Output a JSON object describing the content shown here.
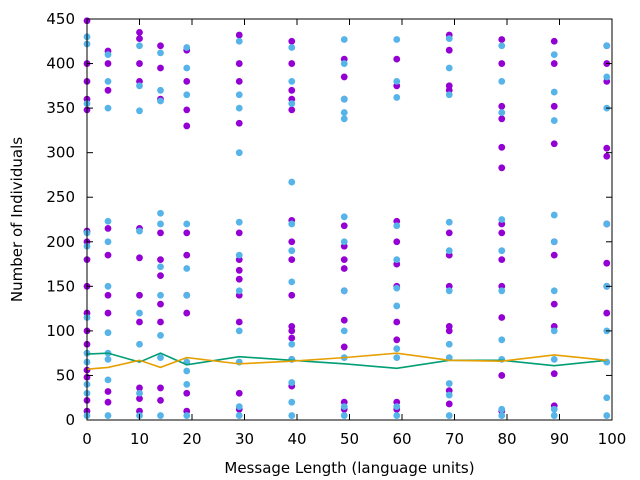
{
  "chart_data": {
    "type": "scatter",
    "xlabel": "Message Length (language units)",
    "ylabel": "Number of Individuals",
    "xlim": [
      0,
      100
    ],
    "ylim": [
      0,
      450
    ],
    "xticks": [
      "0",
      "10",
      "20",
      "30",
      "40",
      "50",
      "60",
      "70",
      "80",
      "90",
      "100"
    ],
    "yticks": [
      "0",
      "50",
      "100",
      "150",
      "200",
      "250",
      "300",
      "350",
      "400",
      "450"
    ],
    "grid": false,
    "colors": {
      "violet": "#9400d3",
      "skyblue": "#56b4e9",
      "teal": "#009e73",
      "orange": "#e69f00"
    },
    "x_positions": [
      0,
      4,
      10,
      14,
      19,
      29,
      39,
      49,
      59,
      69,
      79,
      89,
      99
    ],
    "series": [
      {
        "color_key": "violet",
        "kind": "points",
        "points": [
          [
            0,
            448
          ],
          [
            0,
            400
          ],
          [
            0,
            380
          ],
          [
            0,
            360
          ],
          [
            0,
            348
          ],
          [
            0,
            212
          ],
          [
            0,
            200
          ],
          [
            0,
            180
          ],
          [
            0,
            150
          ],
          [
            0,
            120
          ],
          [
            0,
            100
          ],
          [
            0,
            85
          ],
          [
            0,
            56
          ],
          [
            0,
            48
          ],
          [
            0,
            22
          ],
          [
            0,
            10
          ],
          [
            4,
            414
          ],
          [
            4,
            400
          ],
          [
            4,
            370
          ],
          [
            4,
            215
          ],
          [
            4,
            185
          ],
          [
            4,
            140
          ],
          [
            4,
            120
          ],
          [
            4,
            32
          ],
          [
            4,
            20
          ],
          [
            10,
            435
          ],
          [
            10,
            428
          ],
          [
            10,
            400
          ],
          [
            10,
            380
          ],
          [
            10,
            215
          ],
          [
            10,
            182
          ],
          [
            10,
            140
          ],
          [
            10,
            110
          ],
          [
            10,
            36
          ],
          [
            10,
            24
          ],
          [
            10,
            10
          ],
          [
            14,
            420
          ],
          [
            14,
            395
          ],
          [
            14,
            360
          ],
          [
            14,
            210
          ],
          [
            14,
            180
          ],
          [
            14,
            162
          ],
          [
            14,
            130
          ],
          [
            14,
            110
          ],
          [
            14,
            36
          ],
          [
            14,
            22
          ],
          [
            19,
            415
          ],
          [
            19,
            380
          ],
          [
            19,
            348
          ],
          [
            19,
            330
          ],
          [
            19,
            210
          ],
          [
            19,
            185
          ],
          [
            19,
            140
          ],
          [
            19,
            120
          ],
          [
            19,
            30
          ],
          [
            19,
            10
          ],
          [
            29,
            432
          ],
          [
            29,
            400
          ],
          [
            29,
            380
          ],
          [
            29,
            333
          ],
          [
            29,
            210
          ],
          [
            29,
            180
          ],
          [
            29,
            168
          ],
          [
            29,
            158
          ],
          [
            29,
            140
          ],
          [
            29,
            110
          ],
          [
            29,
            30
          ],
          [
            29,
            12
          ],
          [
            39,
            425
          ],
          [
            39,
            400
          ],
          [
            39,
            370
          ],
          [
            39,
            360
          ],
          [
            39,
            348
          ],
          [
            39,
            224
          ],
          [
            39,
            200
          ],
          [
            39,
            180
          ],
          [
            39,
            140
          ],
          [
            39,
            105
          ],
          [
            39,
            100
          ],
          [
            39,
            92
          ],
          [
            39,
            68
          ],
          [
            39,
            38
          ],
          [
            49,
            405
          ],
          [
            49,
            385
          ],
          [
            49,
            360
          ],
          [
            49,
            218
          ],
          [
            49,
            195
          ],
          [
            49,
            180
          ],
          [
            49,
            170
          ],
          [
            49,
            145
          ],
          [
            49,
            112
          ],
          [
            49,
            82
          ],
          [
            49,
            20
          ],
          [
            49,
            12
          ],
          [
            59,
            405
          ],
          [
            59,
            375
          ],
          [
            59,
            223
          ],
          [
            59,
            200
          ],
          [
            59,
            175
          ],
          [
            59,
            150
          ],
          [
            59,
            110
          ],
          [
            59,
            90
          ],
          [
            59,
            20
          ],
          [
            59,
            12
          ],
          [
            69,
            432
          ],
          [
            69,
            415
          ],
          [
            69,
            375
          ],
          [
            69,
            370
          ],
          [
            69,
            210
          ],
          [
            69,
            185
          ],
          [
            69,
            150
          ],
          [
            69,
            105
          ],
          [
            69,
            100
          ],
          [
            69,
            33
          ],
          [
            69,
            18
          ],
          [
            79,
            427
          ],
          [
            79,
            400
          ],
          [
            79,
            352
          ],
          [
            79,
            338
          ],
          [
            79,
            306
          ],
          [
            79,
            283
          ],
          [
            79,
            220
          ],
          [
            79,
            210
          ],
          [
            79,
            180
          ],
          [
            79,
            150
          ],
          [
            79,
            115
          ],
          [
            79,
            50
          ],
          [
            79,
            10
          ],
          [
            89,
            425
          ],
          [
            89,
            400
          ],
          [
            89,
            352
          ],
          [
            89,
            310
          ],
          [
            89,
            200
          ],
          [
            89,
            185
          ],
          [
            89,
            130
          ],
          [
            89,
            105
          ],
          [
            89,
            52
          ],
          [
            89,
            16
          ],
          [
            99,
            420
          ],
          [
            99,
            400
          ],
          [
            99,
            380
          ],
          [
            99,
            305
          ],
          [
            99,
            296
          ],
          [
            99,
            220
          ],
          [
            99,
            176
          ],
          [
            99,
            150
          ],
          [
            99,
            120
          ]
        ]
      },
      {
        "color_key": "skyblue",
        "kind": "points",
        "points": [
          [
            0,
            430
          ],
          [
            0,
            422
          ],
          [
            0,
            355
          ],
          [
            0,
            210
          ],
          [
            0,
            195
          ],
          [
            0,
            115
          ],
          [
            0,
            75
          ],
          [
            0,
            65
          ],
          [
            0,
            40
          ],
          [
            0,
            30
          ],
          [
            0,
            5
          ],
          [
            4,
            410
          ],
          [
            4,
            380
          ],
          [
            4,
            350
          ],
          [
            4,
            223
          ],
          [
            4,
            200
          ],
          [
            4,
            150
          ],
          [
            4,
            98
          ],
          [
            4,
            75
          ],
          [
            4,
            68
          ],
          [
            4,
            45
          ],
          [
            4,
            5
          ],
          [
            10,
            420
          ],
          [
            10,
            375
          ],
          [
            10,
            347
          ],
          [
            10,
            212
          ],
          [
            10,
            120
          ],
          [
            10,
            85
          ],
          [
            10,
            30
          ],
          [
            10,
            5
          ],
          [
            14,
            412
          ],
          [
            14,
            370
          ],
          [
            14,
            358
          ],
          [
            14,
            232
          ],
          [
            14,
            220
          ],
          [
            14,
            172
          ],
          [
            14,
            140
          ],
          [
            14,
            95
          ],
          [
            14,
            70
          ],
          [
            14,
            5
          ],
          [
            19,
            418
          ],
          [
            19,
            395
          ],
          [
            19,
            365
          ],
          [
            19,
            220
          ],
          [
            19,
            170
          ],
          [
            19,
            140
          ],
          [
            19,
            65
          ],
          [
            19,
            55
          ],
          [
            19,
            40
          ],
          [
            19,
            5
          ],
          [
            29,
            425
          ],
          [
            29,
            365
          ],
          [
            29,
            350
          ],
          [
            29,
            300
          ],
          [
            29,
            222
          ],
          [
            29,
            185
          ],
          [
            29,
            145
          ],
          [
            29,
            100
          ],
          [
            29,
            65
          ],
          [
            29,
            15
          ],
          [
            29,
            5
          ],
          [
            39,
            418
          ],
          [
            39,
            380
          ],
          [
            39,
            355
          ],
          [
            39,
            267
          ],
          [
            39,
            220
          ],
          [
            39,
            190
          ],
          [
            39,
            155
          ],
          [
            39,
            85
          ],
          [
            39,
            68
          ],
          [
            39,
            42
          ],
          [
            39,
            20
          ],
          [
            39,
            5
          ],
          [
            49,
            427
          ],
          [
            49,
            400
          ],
          [
            49,
            360
          ],
          [
            49,
            345
          ],
          [
            49,
            338
          ],
          [
            49,
            228
          ],
          [
            49,
            200
          ],
          [
            49,
            145
          ],
          [
            49,
            100
          ],
          [
            49,
            70
          ],
          [
            49,
            15
          ],
          [
            49,
            5
          ],
          [
            59,
            427
          ],
          [
            59,
            380
          ],
          [
            59,
            362
          ],
          [
            59,
            218
          ],
          [
            59,
            180
          ],
          [
            59,
            148
          ],
          [
            59,
            128
          ],
          [
            59,
            80
          ],
          [
            59,
            70
          ],
          [
            59,
            15
          ],
          [
            59,
            5
          ],
          [
            69,
            428
          ],
          [
            69,
            395
          ],
          [
            69,
            365
          ],
          [
            69,
            222
          ],
          [
            69,
            190
          ],
          [
            69,
            145
          ],
          [
            69,
            85
          ],
          [
            69,
            70
          ],
          [
            69,
            41
          ],
          [
            69,
            28
          ],
          [
            69,
            5
          ],
          [
            79,
            420
          ],
          [
            79,
            380
          ],
          [
            79,
            345
          ],
          [
            79,
            225
          ],
          [
            79,
            190
          ],
          [
            79,
            145
          ],
          [
            79,
            90
          ],
          [
            79,
            68
          ],
          [
            79,
            12
          ],
          [
            79,
            5
          ],
          [
            89,
            410
          ],
          [
            89,
            368
          ],
          [
            89,
            336
          ],
          [
            89,
            230
          ],
          [
            89,
            200
          ],
          [
            89,
            145
          ],
          [
            89,
            100
          ],
          [
            89,
            68
          ],
          [
            89,
            12
          ],
          [
            89,
            5
          ],
          [
            99,
            420
          ],
          [
            99,
            385
          ],
          [
            99,
            350
          ],
          [
            99,
            220
          ],
          [
            99,
            150
          ],
          [
            99,
            100
          ],
          [
            99,
            65
          ],
          [
            99,
            25
          ],
          [
            99,
            5
          ]
        ]
      },
      {
        "color_key": "teal",
        "kind": "line",
        "points": [
          [
            0,
            74
          ],
          [
            4,
            75
          ],
          [
            10,
            65
          ],
          [
            14,
            75
          ],
          [
            19,
            62
          ],
          [
            29,
            71
          ],
          [
            39,
            67
          ],
          [
            49,
            63
          ],
          [
            59,
            58
          ],
          [
            69,
            67
          ],
          [
            79,
            67
          ],
          [
            89,
            61
          ],
          [
            99,
            67
          ]
        ]
      },
      {
        "color_key": "orange",
        "kind": "line",
        "points": [
          [
            0,
            57
          ],
          [
            4,
            59
          ],
          [
            10,
            67
          ],
          [
            14,
            59
          ],
          [
            19,
            70
          ],
          [
            29,
            63
          ],
          [
            39,
            66
          ],
          [
            49,
            70
          ],
          [
            59,
            75
          ],
          [
            69,
            67
          ],
          [
            79,
            66
          ],
          [
            89,
            73
          ],
          [
            99,
            67
          ]
        ]
      }
    ]
  }
}
